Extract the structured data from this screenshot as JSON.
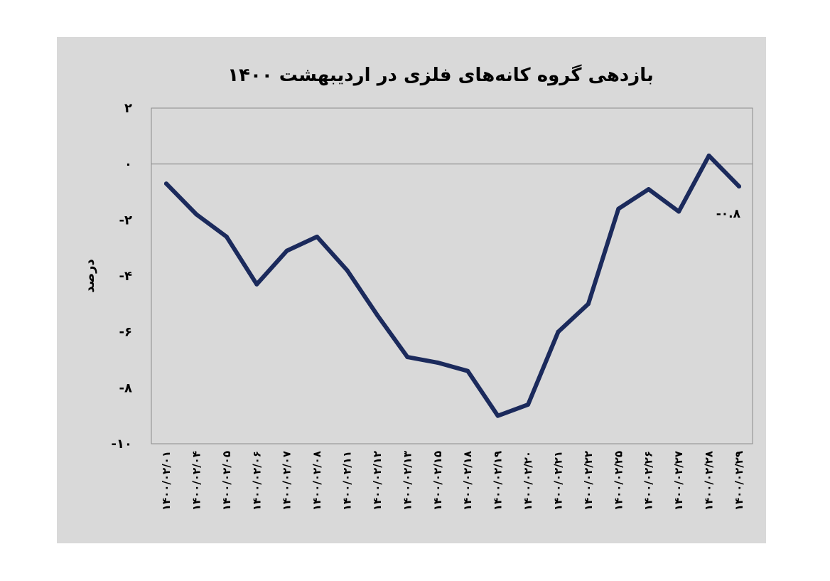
{
  "chart_data": {
    "type": "line",
    "title": "بازدهی گروه کانه‌های فلزی در اردیبهشت ۱۴۰۰",
    "ylabel": "درصد",
    "xlabel": "",
    "ylim": [
      -10,
      2
    ],
    "yticks": [
      2,
      0,
      -2,
      -4,
      -6,
      -8,
      -10
    ],
    "ytick_labels": [
      "۲",
      "۰",
      "-۲",
      "-۴",
      "-۶",
      "-۸",
      "-۱۰"
    ],
    "categories": [
      "۱۴۰۰/۰۲/۰۱",
      "۱۴۰۰/۰۲/۰۴",
      "۱۴۰۰/۰۲/۰۵",
      "۱۴۰۰/۰۲/۰۶",
      "۱۴۰۰/۰۲/۰۷",
      "۱۴۰۰/۰۲/۰۸",
      "۱۴۰۰/۰۲/۱۱",
      "۱۴۰۰/۰۲/۱۲",
      "۱۴۰۰/۰۲/۱۳",
      "۱۴۰۰/۰۲/۱۵",
      "۱۴۰۰/۰۲/۱۸",
      "۱۴۰۰/۰۲/۱۹",
      "۱۴۰۰/۰۲/۲۰",
      "۱۴۰۰/۰۲/۲۱",
      "۱۴۰۰/۰۲/۲۲",
      "۱۴۰۰/۰۲/۲۵",
      "۱۴۰۰/۰۲/۲۶",
      "۱۴۰۰/۰۲/۲۷",
      "۱۴۰۰/۰۲/۲۸",
      "۱۴۰۰/۰۲/۲۹"
    ],
    "series": [
      {
        "values": [
          -0.7,
          -1.8,
          -2.6,
          -4.3,
          -3.1,
          -2.6,
          -3.8,
          -5.4,
          -6.9,
          -7.1,
          -7.4,
          -9.0,
          -8.6,
          -6.0,
          -5.0,
          -1.6,
          -0.9,
          -1.7,
          0.3,
          -0.8
        ],
        "color": "#1b2a5c"
      }
    ],
    "data_labels": [
      {
        "index": 19,
        "text": "-۰.۸"
      }
    ],
    "grid": false,
    "zero_line": true,
    "legend": "none",
    "background": "#d9d9d9",
    "plot_background": "#d9d9d9"
  }
}
